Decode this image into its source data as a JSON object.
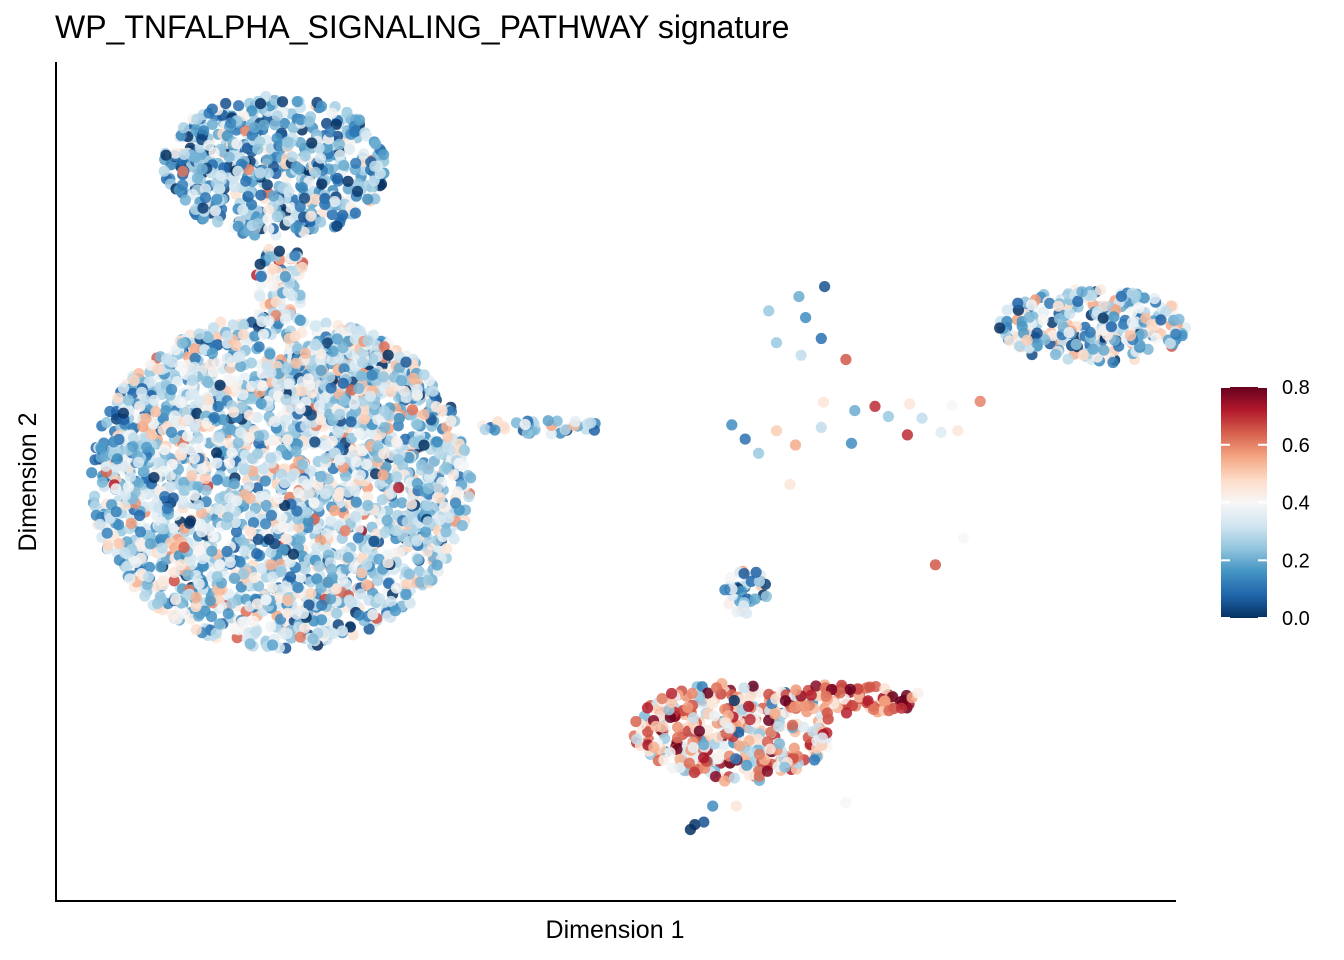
{
  "chart_data": {
    "type": "scatter",
    "title": "WP_TNFALPHA_SIGNALING_PATHWAY signature",
    "xlabel": "Dimension 1",
    "ylabel": "Dimension 2",
    "grid": false,
    "axis_ticks": false,
    "legend": {
      "placement": "right",
      "kind": "colorbar",
      "range": [
        0.0,
        0.8
      ],
      "ticks": [
        "0.0",
        "0.2",
        "0.4",
        "0.6",
        "0.8"
      ],
      "colormap": [
        "#053061",
        "#2166ac",
        "#4393c3",
        "#92c5de",
        "#d1e5f0",
        "#f7f7f7",
        "#fddbc7",
        "#f4a582",
        "#d6604d",
        "#b2182b",
        "#67001f"
      ]
    },
    "xlim": [
      0,
      100
    ],
    "ylim": [
      0,
      100
    ],
    "clusters": [
      {
        "name": "top-left island",
        "cx": 19.5,
        "cy": 87.5,
        "rx": 10.0,
        "ry": 8.5,
        "mean": 0.22,
        "spread": 0.14
      },
      {
        "name": "top-left tail",
        "cx": 20.0,
        "cy": 74.0,
        "rx": 2.2,
        "ry": 4.5,
        "mean": 0.32,
        "spread": 0.16
      },
      {
        "name": "large central mass",
        "cx": 20.0,
        "cy": 50.0,
        "rx": 17.0,
        "ry": 20.0,
        "mean": 0.3,
        "spread": 0.14
      },
      {
        "name": "upper lobe of mass",
        "cx": 26.0,
        "cy": 62.0,
        "rx": 7.0,
        "ry": 5.0,
        "mean": 0.3,
        "spread": 0.14
      },
      {
        "name": "small left blob",
        "cx": 6.0,
        "cy": 53.5,
        "rx": 2.3,
        "ry": 2.0,
        "mean": 0.25,
        "spread": 0.12
      },
      {
        "name": "horizontal strand",
        "cx": 43.5,
        "cy": 56.5,
        "rx": 5.8,
        "ry": 0.9,
        "mean": 0.22,
        "spread": 0.12
      },
      {
        "name": "right island",
        "cx": 92.5,
        "cy": 68.5,
        "rx": 8.5,
        "ry": 4.5,
        "mean": 0.28,
        "spread": 0.16
      },
      {
        "name": "small middle blob",
        "cx": 61.5,
        "cy": 37.0,
        "rx": 2.0,
        "ry": 2.8,
        "mean": 0.2,
        "spread": 0.14
      },
      {
        "name": "bottom cluster",
        "cx": 60.5,
        "cy": 20.0,
        "rx": 9.0,
        "ry": 6.0,
        "mean": 0.48,
        "spread": 0.18
      },
      {
        "name": "bottom right arm",
        "cx": 71.0,
        "cy": 24.0,
        "rx": 6.5,
        "ry": 1.8,
        "mean": 0.62,
        "spread": 0.12
      }
    ],
    "scattered_points": [
      {
        "x": 68.6,
        "y": 73.2,
        "v": 0.05
      },
      {
        "x": 66.3,
        "y": 72.0,
        "v": 0.2
      },
      {
        "x": 63.6,
        "y": 70.3,
        "v": 0.25
      },
      {
        "x": 66.9,
        "y": 69.5,
        "v": 0.15
      },
      {
        "x": 68.3,
        "y": 67.0,
        "v": 0.1
      },
      {
        "x": 64.3,
        "y": 66.5,
        "v": 0.25
      },
      {
        "x": 66.5,
        "y": 65.0,
        "v": 0.3
      },
      {
        "x": 70.5,
        "y": 64.5,
        "v": 0.65
      },
      {
        "x": 68.5,
        "y": 59.4,
        "v": 0.45
      },
      {
        "x": 71.3,
        "y": 58.4,
        "v": 0.2
      },
      {
        "x": 73.1,
        "y": 58.9,
        "v": 0.7
      },
      {
        "x": 74.3,
        "y": 57.7,
        "v": 0.25
      },
      {
        "x": 76.2,
        "y": 59.2,
        "v": 0.45
      },
      {
        "x": 77.3,
        "y": 57.5,
        "v": 0.3
      },
      {
        "x": 80.0,
        "y": 59.0,
        "v": 0.4
      },
      {
        "x": 82.5,
        "y": 59.5,
        "v": 0.6
      },
      {
        "x": 76.0,
        "y": 55.5,
        "v": 0.7
      },
      {
        "x": 79.0,
        "y": 55.8,
        "v": 0.35
      },
      {
        "x": 80.5,
        "y": 56.0,
        "v": 0.45
      },
      {
        "x": 71.0,
        "y": 54.5,
        "v": 0.15
      },
      {
        "x": 60.3,
        "y": 56.7,
        "v": 0.15
      },
      {
        "x": 61.5,
        "y": 55.0,
        "v": 0.1
      },
      {
        "x": 64.3,
        "y": 56.0,
        "v": 0.5
      },
      {
        "x": 66.0,
        "y": 54.3,
        "v": 0.55
      },
      {
        "x": 68.3,
        "y": 56.4,
        "v": 0.3
      },
      {
        "x": 62.7,
        "y": 53.3,
        "v": 0.25
      },
      {
        "x": 65.5,
        "y": 49.6,
        "v": 0.45
      },
      {
        "x": 81.0,
        "y": 43.2,
        "v": 0.4
      },
      {
        "x": 78.5,
        "y": 40.0,
        "v": 0.65
      },
      {
        "x": 57.0,
        "y": 9.0,
        "v": 0.0
      },
      {
        "x": 57.8,
        "y": 9.3,
        "v": 0.05
      },
      {
        "x": 56.6,
        "y": 8.4,
        "v": 0.0
      },
      {
        "x": 70.5,
        "y": 11.6,
        "v": 0.4
      },
      {
        "x": 58.6,
        "y": 11.2,
        "v": 0.15
      },
      {
        "x": 60.7,
        "y": 11.2,
        "v": 0.45
      }
    ]
  }
}
